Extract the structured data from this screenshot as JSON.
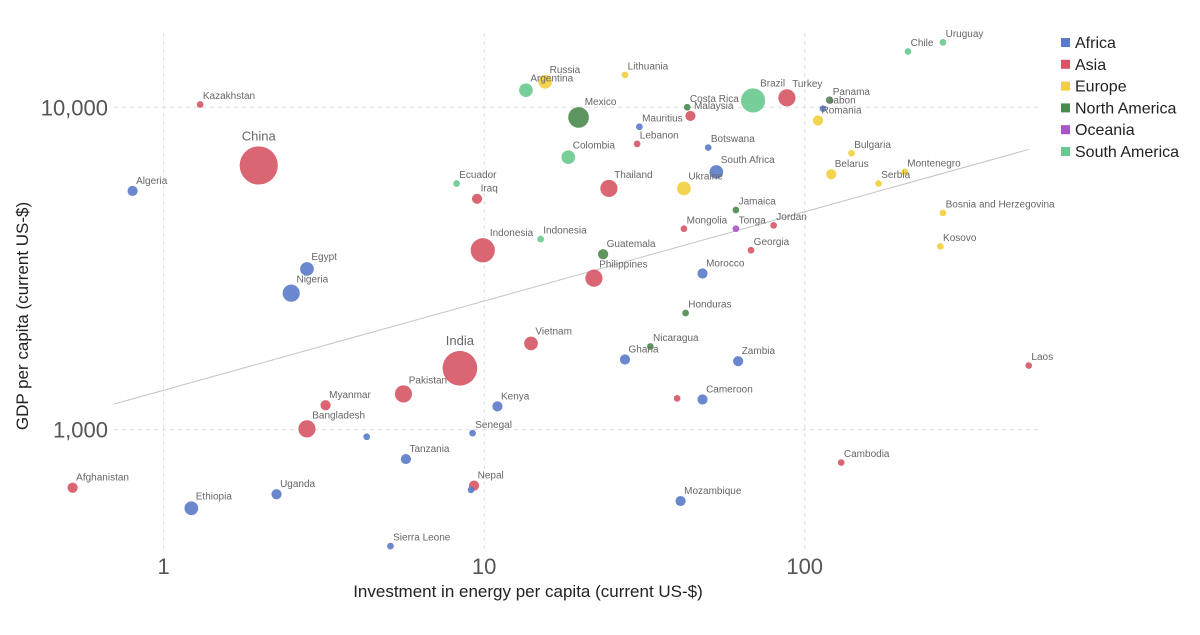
{
  "chart_data": {
    "type": "scatter",
    "title": "",
    "xlabel": "Investment in energy per capita (current US-$)",
    "ylabel": "GDP per capita (current US-$)",
    "x_scale": "log",
    "y_scale": "log",
    "xlim": [
      0.7,
      550
    ],
    "ylim": [
      420,
      17000
    ],
    "x_ticks": [
      {
        "value": 1,
        "label": "1"
      },
      {
        "value": 10,
        "label": "10"
      },
      {
        "value": 100,
        "label": "100"
      }
    ],
    "y_ticks": [
      {
        "value": 1000,
        "label": "1,000"
      },
      {
        "value": 10000,
        "label": "10,000"
      }
    ],
    "grid": true,
    "legend_position": "right",
    "trendline": {
      "x": [
        0.7,
        500
      ],
      "y": [
        1200,
        7400
      ]
    },
    "legend": [
      {
        "name": "Africa",
        "color": "#5b7bc9"
      },
      {
        "name": "Asia",
        "color": "#d65565"
      },
      {
        "name": "Europe",
        "color": "#f2cf3d"
      },
      {
        "name": "North America",
        "color": "#4a8a4e"
      },
      {
        "name": "Oceania",
        "color": "#a855c7"
      },
      {
        "name": "South America",
        "color": "#69c98e"
      }
    ],
    "points": [
      {
        "label": "Uruguay",
        "region": "South America",
        "x": 270,
        "y": 15900,
        "size": 1
      },
      {
        "label": "Chile",
        "region": "South America",
        "x": 210,
        "y": 14900,
        "size": 1
      },
      {
        "label": "Russia",
        "region": "Europe",
        "x": 15.5,
        "y": 12000,
        "size": 3
      },
      {
        "label": "Lithuania",
        "region": "Europe",
        "x": 27.5,
        "y": 12600,
        "size": 1
      },
      {
        "label": "Argentina",
        "region": "South America",
        "x": 13.5,
        "y": 11300,
        "size": 3
      },
      {
        "label": "Brazil",
        "region": "South America",
        "x": 69,
        "y": 10500,
        "size": 6
      },
      {
        "label": "Turkey",
        "region": "Asia",
        "x": 88,
        "y": 10700,
        "size": 4
      },
      {
        "label": "Panama",
        "region": "North America",
        "x": 120,
        "y": 10500,
        "size": 1
      },
      {
        "label": "Costa Rica",
        "region": "North America",
        "x": 43,
        "y": 10000,
        "size": 1
      },
      {
        "label": "Kazakhstan",
        "region": "Asia",
        "x": 1.3,
        "y": 10200,
        "size": 1
      },
      {
        "label": "Mexico",
        "region": "North America",
        "x": 19.7,
        "y": 9300,
        "size": 5
      },
      {
        "label": "Malaysia",
        "region": "Asia",
        "x": 44,
        "y": 9400,
        "size": 2
      },
      {
        "label": "Gabon",
        "region": "Africa",
        "x": 114,
        "y": 9900,
        "size": 1
      },
      {
        "label": "Romania",
        "region": "Europe",
        "x": 110,
        "y": 9100,
        "size": 2
      },
      {
        "label": "Mauritius",
        "region": "Africa",
        "x": 30.5,
        "y": 8700,
        "size": 1
      },
      {
        "label": "Lebanon",
        "region": "Asia",
        "x": 30,
        "y": 7700,
        "size": 1
      },
      {
        "label": "Botswana",
        "region": "Africa",
        "x": 50,
        "y": 7500,
        "size": 1
      },
      {
        "label": "China",
        "region": "Asia",
        "x": 1.98,
        "y": 6600,
        "size": 10
      },
      {
        "label": "Colombia",
        "region": "South America",
        "x": 18.3,
        "y": 7000,
        "size": 3
      },
      {
        "label": "Bulgaria",
        "region": "Europe",
        "x": 140,
        "y": 7200,
        "size": 1
      },
      {
        "label": "South Africa",
        "region": "Africa",
        "x": 53,
        "y": 6300,
        "size": 3
      },
      {
        "label": "Belarus",
        "region": "Europe",
        "x": 121,
        "y": 6200,
        "size": 2
      },
      {
        "label": "Montenegro",
        "region": "Europe",
        "x": 205,
        "y": 6300,
        "size": 1
      },
      {
        "label": "Serbia",
        "region": "Europe",
        "x": 170,
        "y": 5800,
        "size": 1
      },
      {
        "label": "Ecuador",
        "region": "South America",
        "x": 8.2,
        "y": 5800,
        "size": 1
      },
      {
        "label": "Thailand",
        "region": "Asia",
        "x": 24.5,
        "y": 5600,
        "size": 4
      },
      {
        "label": "Ukraine",
        "region": "Europe",
        "x": 42,
        "y": 5600,
        "size": 3
      },
      {
        "label": "Algeria",
        "region": "Africa",
        "x": 0.8,
        "y": 5500,
        "size": 2
      },
      {
        "label": "Iraq",
        "region": "Asia",
        "x": 9.5,
        "y": 5200,
        "size": 2
      },
      {
        "label": "Jamaica",
        "region": "North America",
        "x": 61,
        "y": 4800,
        "size": 1
      },
      {
        "label": "Bosnia and Herzegovina",
        "region": "Europe",
        "x": 270,
        "y": 4700,
        "size": 1
      },
      {
        "label": "Mongolia",
        "region": "Asia",
        "x": 42,
        "y": 4200,
        "size": 1
      },
      {
        "label": "Tonga",
        "region": "Oceania",
        "x": 61,
        "y": 4200,
        "size": 1
      },
      {
        "label": "Jordan",
        "region": "Asia",
        "x": 80,
        "y": 4300,
        "size": 1
      },
      {
        "label": "Indonesia",
        "region": "South America",
        "x": 15,
        "y": 3900,
        "size": 1
      },
      {
        "label": "Georgia",
        "region": "Asia",
        "x": 68,
        "y": 3600,
        "size": 1
      },
      {
        "label": "Kosovo",
        "region": "Europe",
        "x": 265,
        "y": 3700,
        "size": 1
      },
      {
        "label": "Indonesia",
        "region": "Asia",
        "x": 9.9,
        "y": 3600,
        "size": 6
      },
      {
        "label": "Guatemala",
        "region": "North America",
        "x": 23.5,
        "y": 3500,
        "size": 2
      },
      {
        "label": "Philippines",
        "region": "Asia",
        "x": 22,
        "y": 2950,
        "size": 4
      },
      {
        "label": "Morocco",
        "region": "Africa",
        "x": 48,
        "y": 3050,
        "size": 2
      },
      {
        "label": "Egypt",
        "region": "Africa",
        "x": 2.8,
        "y": 3150,
        "size": 3
      },
      {
        "label": "Nigeria",
        "region": "Africa",
        "x": 2.5,
        "y": 2650,
        "size": 4
      },
      {
        "label": "Honduras",
        "region": "North America",
        "x": 42.5,
        "y": 2300,
        "size": 1
      },
      {
        "label": "Vietnam",
        "region": "Asia",
        "x": 14,
        "y": 1850,
        "size": 3
      },
      {
        "label": "Nicaragua",
        "region": "North America",
        "x": 33,
        "y": 1810,
        "size": 1
      },
      {
        "label": "Ghana",
        "region": "Africa",
        "x": 27.5,
        "y": 1650,
        "size": 2
      },
      {
        "label": "Zambia",
        "region": "Africa",
        "x": 62,
        "y": 1630,
        "size": 2
      },
      {
        "label": "India",
        "region": "Asia",
        "x": 8.4,
        "y": 1550,
        "size": 9
      },
      {
        "label": "Laos",
        "region": "Asia",
        "x": 500,
        "y": 1580,
        "size": 1
      },
      {
        "label": "Pakistan",
        "region": "Asia",
        "x": 5.6,
        "y": 1290,
        "size": 4
      },
      {
        "label": "Cameroon",
        "region": "Africa",
        "x": 48,
        "y": 1240,
        "size": 2
      },
      {
        "label": "",
        "region": "Asia",
        "x": 40,
        "y": 1250,
        "size": 1
      },
      {
        "label": "Myanmar",
        "region": "Asia",
        "x": 3.2,
        "y": 1190,
        "size": 2
      },
      {
        "label": "Kenya",
        "region": "Africa",
        "x": 11,
        "y": 1180,
        "size": 2
      },
      {
        "label": "Bangladesh",
        "region": "Asia",
        "x": 2.8,
        "y": 1005,
        "size": 4
      },
      {
        "label": "",
        "region": "Africa",
        "x": 4.3,
        "y": 950,
        "size": 1
      },
      {
        "label": "Senegal",
        "region": "Africa",
        "x": 9.2,
        "y": 975,
        "size": 1
      },
      {
        "label": "Tanzania",
        "region": "Africa",
        "x": 5.7,
        "y": 810,
        "size": 2
      },
      {
        "label": "Cambodia",
        "region": "Asia",
        "x": 130,
        "y": 790,
        "size": 1
      },
      {
        "label": "Afghanistan",
        "region": "Asia",
        "x": 0.52,
        "y": 660,
        "size": 2
      },
      {
        "label": "Nepal",
        "region": "Asia",
        "x": 9.3,
        "y": 670,
        "size": 2
      },
      {
        "label": "",
        "region": "Africa",
        "x": 9.1,
        "y": 650,
        "size": 1
      },
      {
        "label": "Uganda",
        "region": "Africa",
        "x": 2.25,
        "y": 630,
        "size": 2
      },
      {
        "label": "Mozambique",
        "region": "Africa",
        "x": 41,
        "y": 600,
        "size": 2
      },
      {
        "label": "Ethiopia",
        "region": "Africa",
        "x": 1.22,
        "y": 570,
        "size": 3
      },
      {
        "label": "Sierra Leone",
        "region": "Africa",
        "x": 5.1,
        "y": 435,
        "size": 1
      }
    ]
  }
}
